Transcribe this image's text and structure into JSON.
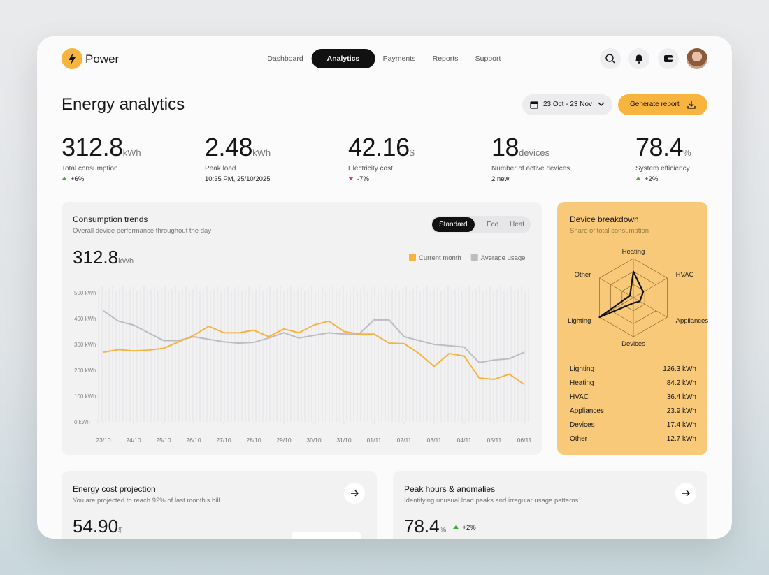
{
  "brand": "Power",
  "nav": [
    {
      "label": "Dashboard",
      "active": false
    },
    {
      "label": "Analytics",
      "active": true
    },
    {
      "label": "Payments",
      "active": false
    },
    {
      "label": "Reports",
      "active": false
    },
    {
      "label": "Support",
      "active": false
    }
  ],
  "page_title": "Energy analytics",
  "date_range": "23 Oct - 23 Nov",
  "generate_button": "Generate report",
  "kpis": [
    {
      "value": 312.8,
      "unit": "kWh",
      "label": "Total consumption",
      "change": "+6%",
      "trend": "up"
    },
    {
      "value": 2.48,
      "unit": "kWh",
      "label": "Peak load",
      "detail": "10:35 PM, 25/10/2025"
    },
    {
      "value": 42.16,
      "unit": "$",
      "label": "Electricity cost",
      "change": "-7%",
      "trend": "down"
    },
    {
      "value": 18,
      "unit": "devices",
      "label": "Number of active devices",
      "detail": "2 new"
    },
    {
      "value": 78.4,
      "unit": "%",
      "label": "System efficiency",
      "change": "+2%",
      "trend": "up"
    }
  ],
  "consumption_trends": {
    "title": "Consumption trends",
    "subtitle": "Overall device performance throughout the day",
    "tabs": [
      {
        "label": "Standard",
        "active": true
      },
      {
        "label": "Eco",
        "active": false
      },
      {
        "label": "Heat",
        "active": false
      }
    ],
    "total": 312.8,
    "unit": "kWh",
    "chart": {
      "type": "line",
      "x": [
        0,
        0.5,
        1,
        1.5,
        2,
        2.5,
        3,
        3.5,
        4,
        4.5,
        5,
        5.5,
        6,
        6.5,
        7,
        7.5,
        8,
        8.5,
        9,
        9.5,
        10,
        10.5,
        11,
        11.5,
        12,
        12.5,
        13,
        13.5,
        14
      ],
      "xlim": [
        0,
        14
      ],
      "xticks": [
        {
          "value": 0,
          "label": "23/10"
        },
        {
          "value": 1,
          "label": "24/10"
        },
        {
          "value": 2,
          "label": "25/10"
        },
        {
          "value": 3,
          "label": "26/10"
        },
        {
          "value": 4,
          "label": "27/10"
        },
        {
          "value": 5,
          "label": "28/10"
        },
        {
          "value": 6,
          "label": "29/10"
        },
        {
          "value": 7,
          "label": "30/10"
        },
        {
          "value": 8,
          "label": "31/10"
        },
        {
          "value": 9,
          "label": "01/11"
        },
        {
          "value": 10,
          "label": "02/11"
        },
        {
          "value": 11,
          "label": "03/11"
        },
        {
          "value": 12,
          "label": "04/11"
        },
        {
          "value": 13,
          "label": "05/11"
        },
        {
          "value": 14,
          "label": "06/11"
        }
      ],
      "ylim": [
        0,
        500
      ],
      "yticks": [
        {
          "value": 0,
          "label": "0 kWh"
        },
        {
          "value": 100,
          "label": "100 kWh"
        },
        {
          "value": 200,
          "label": "200 kWh"
        },
        {
          "value": 300,
          "label": "300 kWh"
        },
        {
          "value": 400,
          "label": "400 kWh"
        },
        {
          "value": 500,
          "label": "500 kWh"
        }
      ],
      "series": [
        {
          "name": "Current month",
          "color": "#f5b342",
          "values": [
            270,
            280,
            275,
            278,
            285,
            310,
            335,
            370,
            345,
            345,
            355,
            330,
            360,
            345,
            375,
            390,
            350,
            340,
            340,
            305,
            303,
            265,
            215,
            265,
            255,
            170,
            165,
            185,
            145
          ]
        },
        {
          "name": "Average usage",
          "color": "#bdbdc1",
          "values": [
            430,
            390,
            375,
            345,
            315,
            315,
            330,
            320,
            310,
            305,
            308,
            325,
            345,
            325,
            335,
            345,
            340,
            340,
            395,
            395,
            330,
            315,
            300,
            295,
            290,
            230,
            240,
            245,
            270
          ]
        }
      ]
    }
  },
  "device_breakdown": {
    "title": "Device breakdown",
    "subtitle": "Share of total consumption",
    "type": "radar",
    "categories": [
      "Heating",
      "HVAC",
      "Appliances",
      "Devices",
      "Lighting",
      "Other"
    ],
    "values": [
      84.2,
      36.4,
      23.9,
      17.4,
      126.3,
      12.7
    ],
    "value_labels": [
      "84.2 kWh",
      "36.4 kWh",
      "23.9 kWh",
      "17.4 kWh",
      "126.3 kWh",
      "12.7 kWh"
    ],
    "table_order": [
      4,
      0,
      1,
      2,
      3,
      5
    ]
  },
  "cost_projection": {
    "title": "Energy cost projection",
    "subtitle": "You are projected to reach 92% of last month's bill",
    "value": "54.90",
    "unit": "$"
  },
  "peak_hours": {
    "title": "Peak hours & anomalies",
    "subtitle": "Identifying unusual load peaks and irregular usage patterns",
    "value": 78.4,
    "unit": "%",
    "change": "+2%",
    "trend": "up"
  }
}
